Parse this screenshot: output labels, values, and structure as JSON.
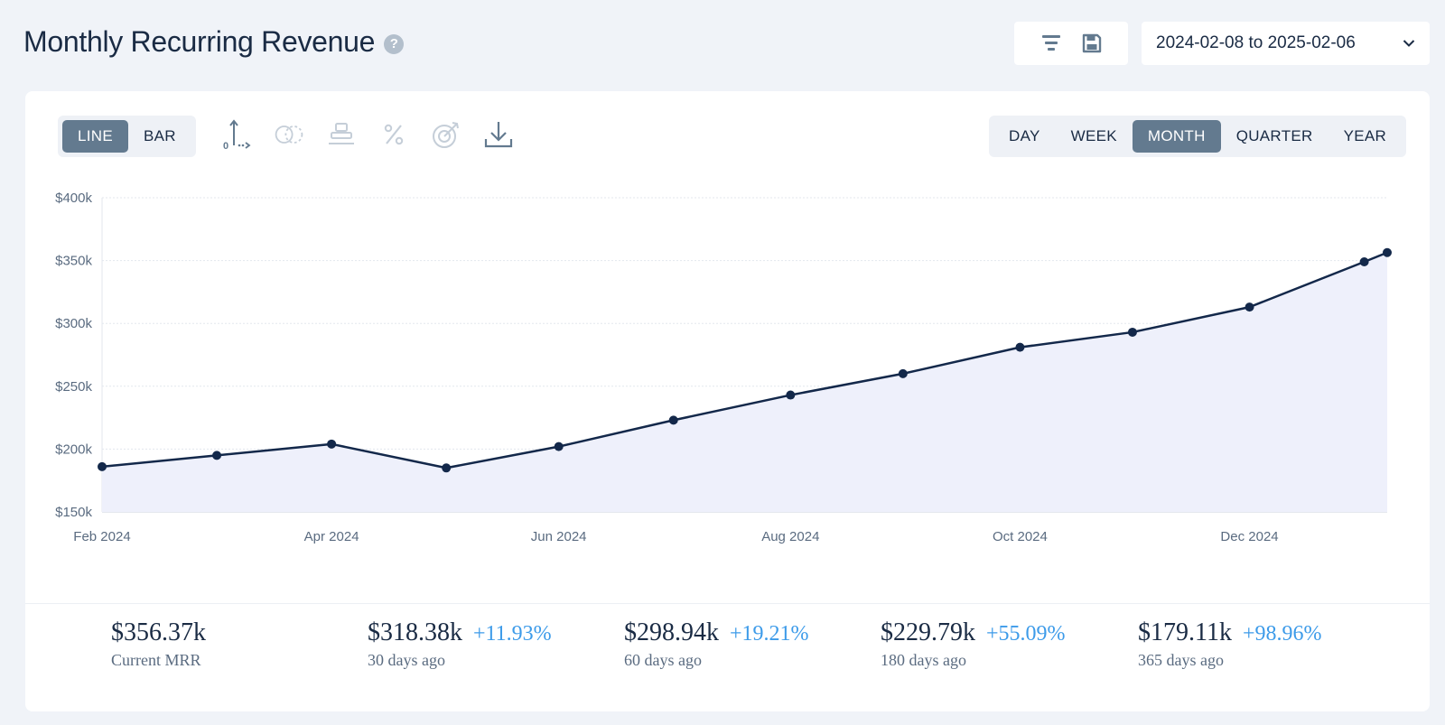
{
  "header": {
    "title": "Monthly Recurring Revenue",
    "help_icon": "?",
    "date_range": "2024-02-08 to 2025-02-06"
  },
  "toolbar": {
    "filter_icon": "filter-icon",
    "save_icon": "save-icon"
  },
  "chart_type_toggle": [
    {
      "label": "LINE",
      "active": true
    },
    {
      "label": "BAR",
      "active": false
    }
  ],
  "chart_tools": [
    "axis-origin-icon",
    "compare-icon",
    "stack-icon",
    "percent-icon",
    "target-icon",
    "download-icon"
  ],
  "period_toggle": [
    {
      "label": "DAY",
      "active": false
    },
    {
      "label": "WEEK",
      "active": false
    },
    {
      "label": "MONTH",
      "active": true
    },
    {
      "label": "QUARTER",
      "active": false
    },
    {
      "label": "YEAR",
      "active": false
    }
  ],
  "chart_data": {
    "type": "area",
    "x": [
      "Feb 2024",
      "Mar 2024",
      "Apr 2024",
      "May 2024",
      "Jun 2024",
      "Jul 2024",
      "Aug 2024",
      "Sep 2024",
      "Oct 2024",
      "Nov 2024",
      "Dec 2024",
      "Jan 2025",
      "Feb 2025"
    ],
    "x_positions": [
      0,
      1,
      2,
      3,
      3.98,
      4.98,
      6,
      6.98,
      8,
      8.98,
      10,
      11,
      11.2
    ],
    "series": [
      {
        "name": "",
        "values": [
          186,
          195,
          204,
          185,
          202,
          223,
          243,
          260,
          281,
          293,
          313,
          349,
          356.37
        ],
        "color": "#13284a"
      }
    ],
    "ylim": [
      150,
      400
    ],
    "yticks": [
      "$150k",
      "$200k",
      "$250k",
      "$300k",
      "$350k",
      "$400k"
    ],
    "xticks": [
      "Feb 2024",
      "Apr 2024",
      "Jun 2024",
      "Aug 2024",
      "Oct 2024",
      "Dec 2024"
    ],
    "y_unit": "$k",
    "grid": true,
    "fill_color": "#eef0fb"
  },
  "stats": [
    {
      "value": "$356.37k",
      "change": "",
      "label": "Current MRR"
    },
    {
      "value": "$318.38k",
      "change": "+11.93%",
      "label": "30 days ago"
    },
    {
      "value": "$298.94k",
      "change": "+19.21%",
      "label": "60 days ago"
    },
    {
      "value": "$229.79k",
      "change": "+55.09%",
      "label": "180 days ago"
    },
    {
      "value": "$179.11k",
      "change": "+98.96%",
      "label": "365 days ago"
    }
  ]
}
